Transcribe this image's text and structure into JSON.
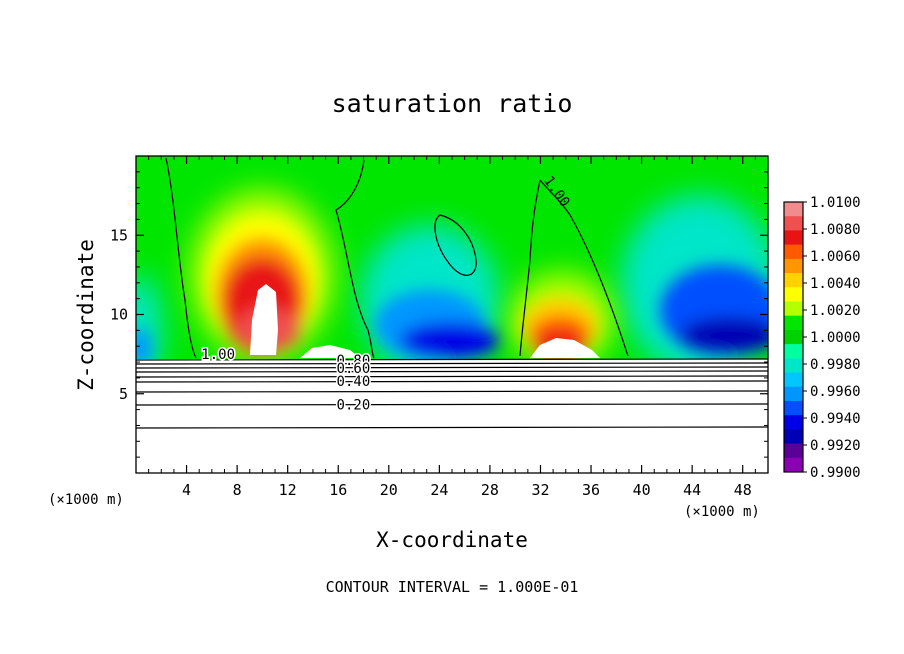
{
  "chart_data": {
    "type": "heatmap",
    "title": "saturation ratio",
    "xlabel": "X-coordinate",
    "ylabel": "Z-coordinate",
    "x_unit_left": "(×1000 m)",
    "x_unit_right": "(×1000 m)",
    "xlim": [
      0,
      50
    ],
    "ylim": [
      0,
      20
    ],
    "x_ticks": [
      4,
      8,
      12,
      16,
      20,
      24,
      28,
      32,
      36,
      40,
      44,
      48
    ],
    "x_tick_labels": [
      "4",
      "8",
      "12",
      "16",
      "20",
      "24",
      "28",
      "32",
      "36",
      "40",
      "44",
      "48"
    ],
    "y_ticks": [
      5,
      10,
      15
    ],
    "y_tick_labels": [
      "5",
      "10",
      "15"
    ],
    "colorbar": {
      "labels": [
        "1.0100",
        "1.0080",
        "1.0060",
        "1.0040",
        "1.0020",
        "1.0000",
        "0.9980",
        "0.9960",
        "0.9940",
        "0.9920",
        "0.9900"
      ],
      "colors": [
        "#f08c8c",
        "#f05050",
        "#e81414",
        "#ff5a00",
        "#ff9600",
        "#ffd200",
        "#ffff00",
        "#b4ff00",
        "#00e600",
        "#00d200",
        "#00ffa0",
        "#00e6c8",
        "#00c8ff",
        "#0096ff",
        "#0050ff",
        "#0000e6",
        "#0000b4",
        "#5a0096",
        "#8c00b4"
      ]
    },
    "contour_labels": [
      {
        "text": "1.00",
        "x": 6.5,
        "y": 7.2
      },
      {
        "text": "0.80",
        "x": 17.2,
        "y": 6.8
      },
      {
        "text": "0.60",
        "x": 17.2,
        "y": 6.3
      },
      {
        "text": "0.40",
        "x": 17.2,
        "y": 5.5
      },
      {
        "text": "0.20",
        "x": 17.2,
        "y": 4.0
      },
      {
        "text": "1.00",
        "x": 33.0,
        "y": 17.6
      }
    ],
    "footer": "CONTOUR INTERVAL = 1.000E-01"
  }
}
